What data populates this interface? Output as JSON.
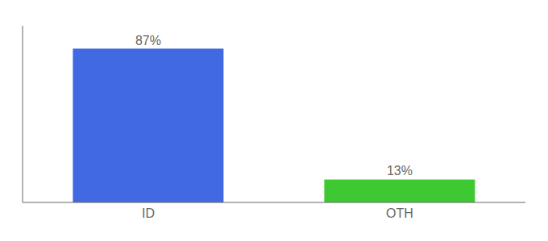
{
  "chart_data": {
    "type": "bar",
    "categories": [
      "ID",
      "OTH"
    ],
    "values": [
      87,
      13
    ],
    "value_labels": [
      "87%",
      "13%"
    ],
    "colors": [
      "#4169e1",
      "#3ec832"
    ],
    "ylim": [
      0,
      100
    ],
    "data_labels": true,
    "tick_labels": "x",
    "grid": false
  }
}
